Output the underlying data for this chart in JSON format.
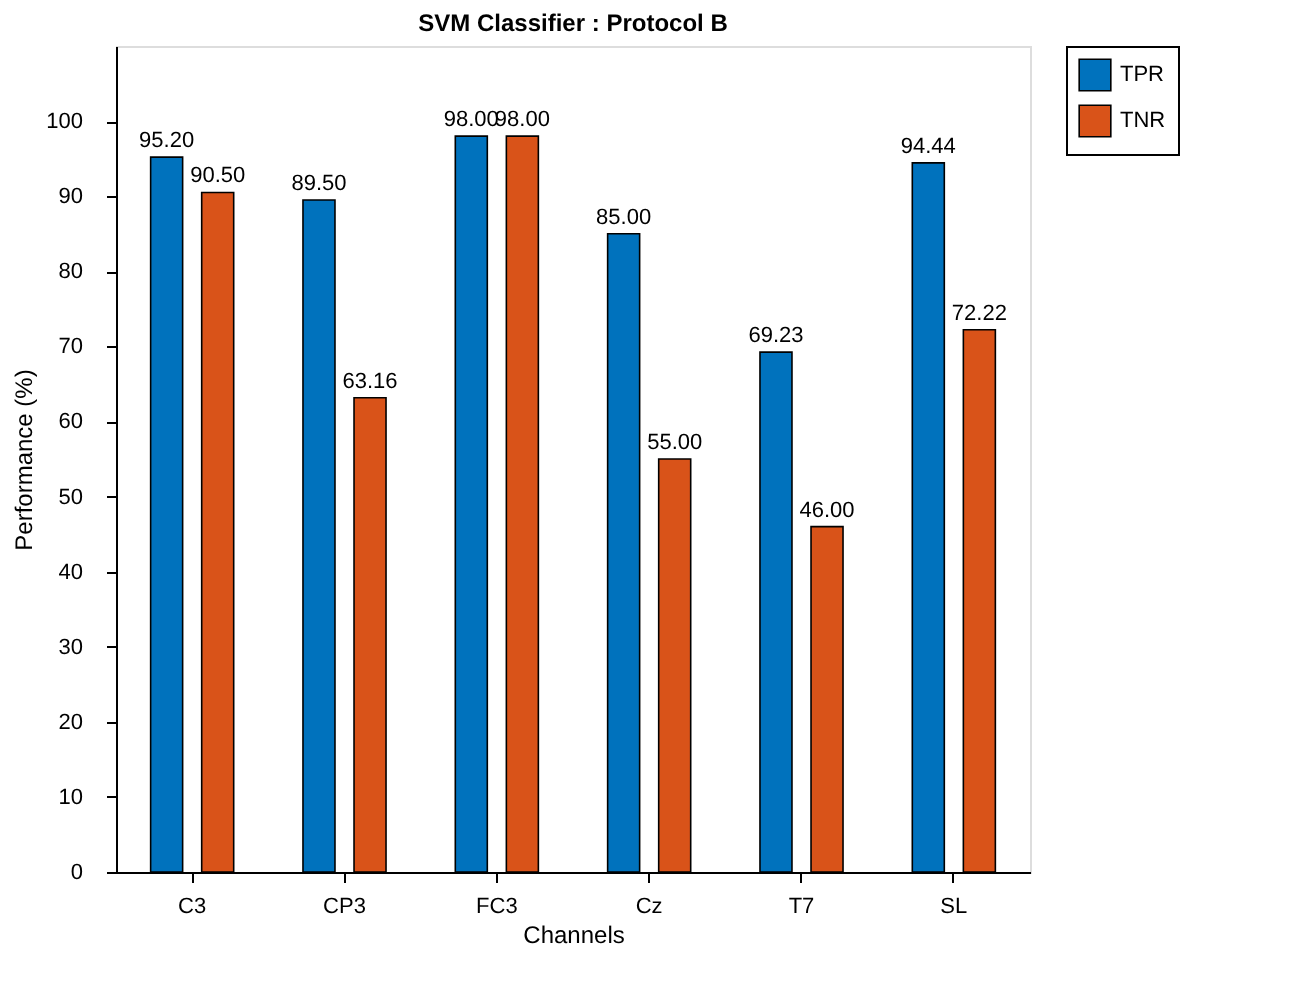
{
  "chart_data": {
    "type": "bar",
    "title": "SVM Classifier : Protocol B",
    "xlabel": "Channels",
    "ylabel": "Performance (%)",
    "categories": [
      "C3",
      "CP3",
      "FC3",
      "Cz",
      "T7",
      "SL"
    ],
    "series": [
      {
        "name": "TPR",
        "color": "#0072bd",
        "values": [
          95.2,
          89.5,
          98.0,
          85.0,
          69.23,
          94.44
        ],
        "value_labels": [
          "95.20",
          "89.50",
          "98.00",
          "85.00",
          "69.23",
          "94.44"
        ]
      },
      {
        "name": "TNR",
        "color": "#d95319",
        "values": [
          90.5,
          63.16,
          98.0,
          55.0,
          46.0,
          72.22
        ],
        "value_labels": [
          "90.50",
          "63.16",
          "98.00",
          "55.00",
          "46.00",
          "72.22"
        ]
      }
    ],
    "ylim": [
      0,
      110
    ],
    "yticks": [
      0,
      10,
      20,
      30,
      40,
      50,
      60,
      70,
      80,
      90,
      100
    ],
    "grid": false,
    "legend": "right"
  }
}
